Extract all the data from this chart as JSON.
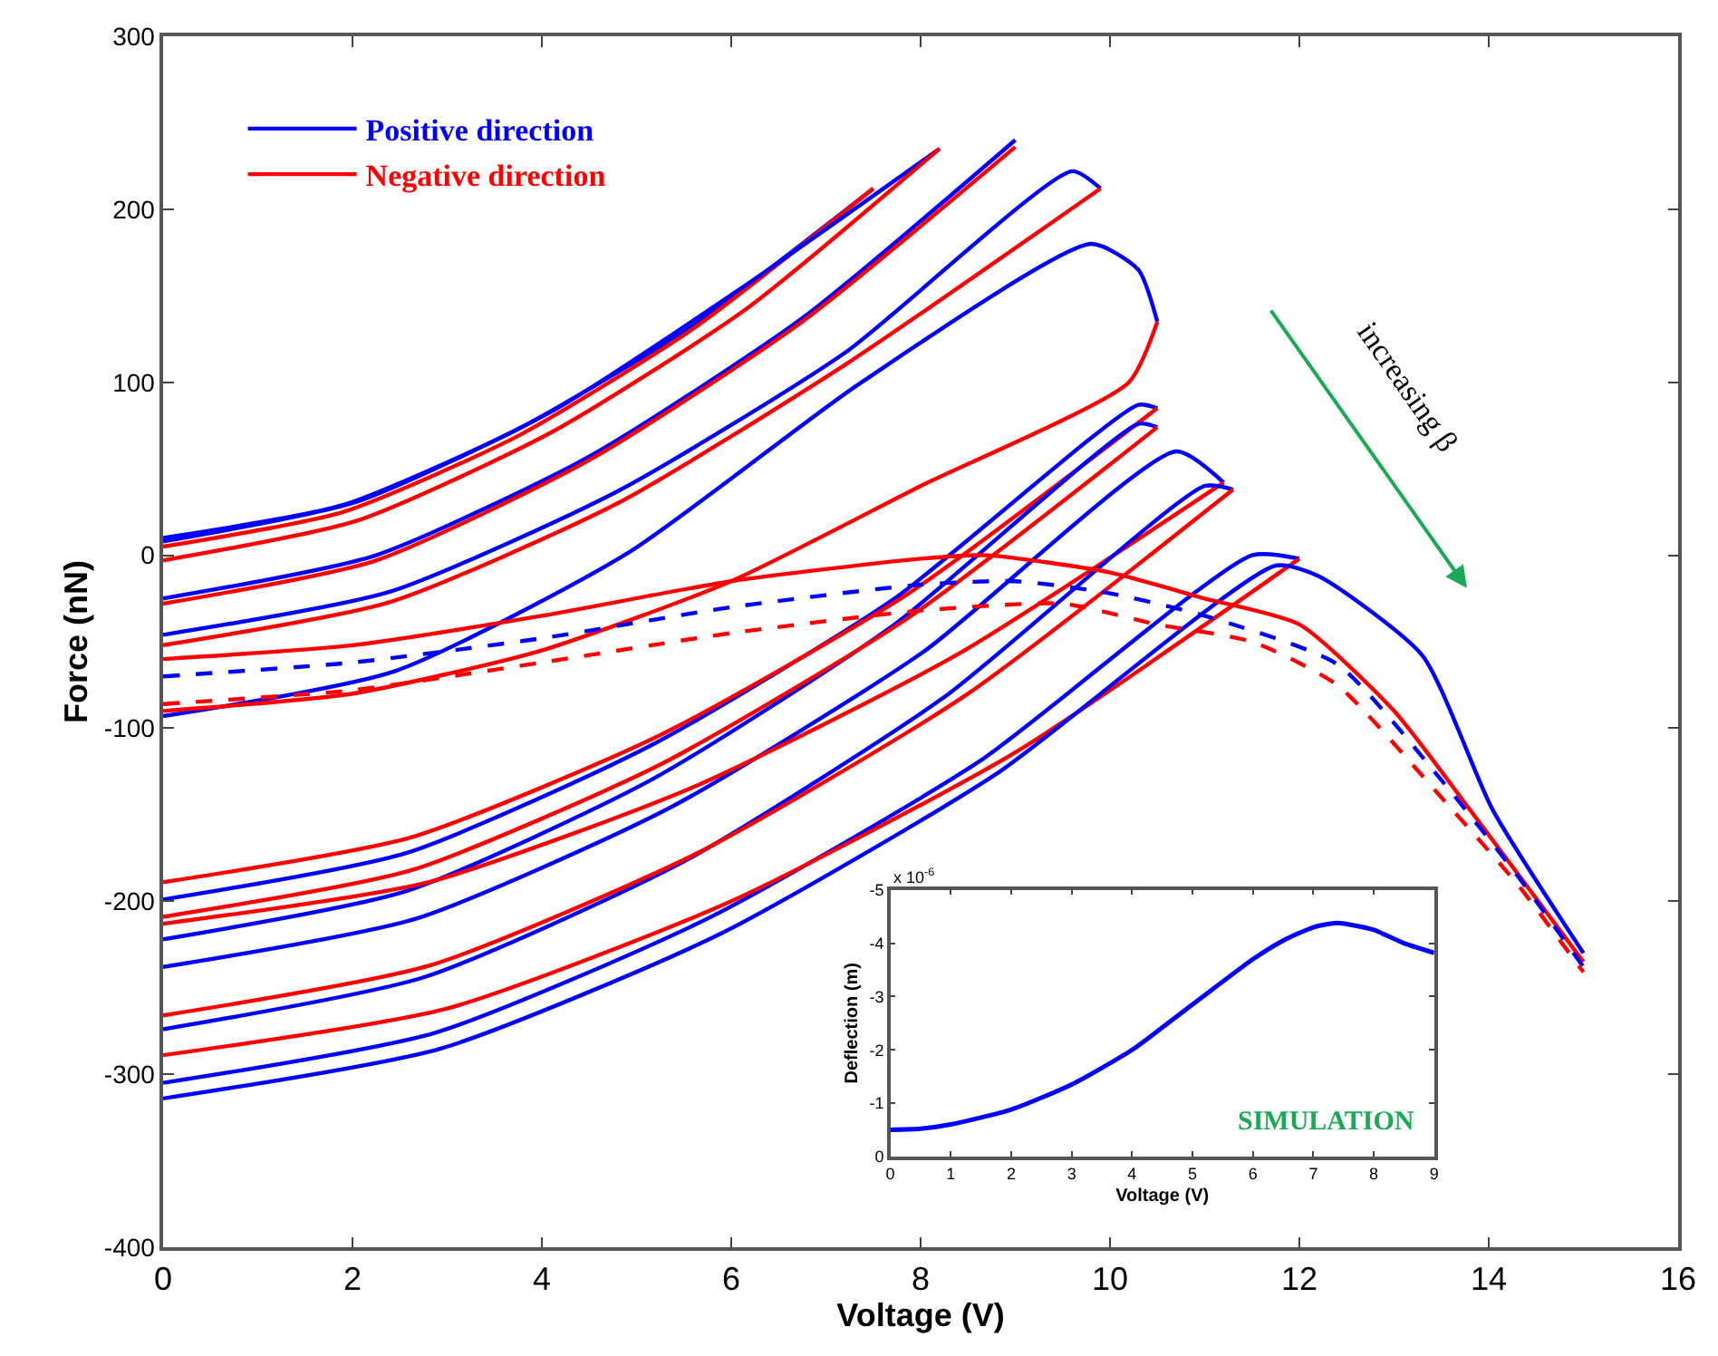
{
  "chart_data": [
    {
      "type": "line",
      "xlabel": "Voltage (V)",
      "ylabel": "Force (nN)",
      "xlim": [
        0,
        16
      ],
      "xticks": [
        0,
        2,
        4,
        6,
        8,
        10,
        12,
        14,
        16
      ],
      "ylim": [
        -400,
        300
      ],
      "yticks": [
        -400,
        -300,
        -200,
        -100,
        0,
        100,
        200,
        300
      ],
      "legend": "top left",
      "marker": "none",
      "line_style": "solid",
      "annotations": [
        "increasing β"
      ],
      "series": [
        {
          "name": "Positive direction",
          "color": "#0000ff",
          "x": [
            0,
            1.9,
            3.75,
            5.6,
            7.5
          ],
          "values": [
            10,
            29,
            73,
            133,
            212
          ]
        },
        {
          "name": "Negative direction",
          "color": "#ff0000",
          "x": [
            0,
            1.9,
            3.75,
            5.6,
            7.5
          ],
          "values": [
            5,
            25,
            69,
            131,
            212
          ]
        },
        {
          "color": "#0000ff",
          "x": [
            0,
            2.05,
            4.1,
            6.15,
            8.2
          ],
          "values": [
            8,
            31,
            83,
            156,
            235
          ]
        },
        {
          "color": "#ff0000",
          "x": [
            0,
            2.05,
            4.1,
            6.15,
            8.2
          ],
          "values": [
            -3,
            20,
            71,
            142,
            235
          ]
        },
        {
          "color": "#0000ff",
          "x": [
            0,
            2.25,
            4.5,
            6.75,
            9
          ],
          "values": [
            -25,
            0,
            57,
            137,
            240
          ]
        },
        {
          "color": "#ff0000",
          "x": [
            0,
            2.25,
            4.5,
            6.75,
            9
          ],
          "values": [
            -28,
            -3,
            55,
            135,
            236
          ]
        },
        {
          "color": "#0000ff",
          "x": [
            0,
            2.4,
            4.8,
            7.2,
            9.6,
            9.9
          ],
          "values": [
            -46,
            -21,
            37,
            117,
            222,
            212
          ]
        },
        {
          "color": "#ff0000",
          "x": [
            0,
            2.4,
            4.8,
            7.2,
            9.9
          ],
          "values": [
            -52,
            -27,
            30,
            110,
            212
          ]
        },
        {
          "color": "#0000ff",
          "x": [
            0,
            2.45,
            4.9,
            7.35,
            9.8,
            10.3,
            10.5
          ],
          "values": [
            -93,
            -67,
            1,
            99,
            180,
            165,
            135
          ]
        },
        {
          "color": "#ff0000",
          "x": [
            10.5,
            10.2,
            8,
            6,
            4,
            2,
            0
          ],
          "values": [
            135,
            100,
            40,
            -15,
            -55,
            -80,
            -90
          ]
        },
        {
          "color": "#0000ff",
          "x": [
            0,
            2.575,
            5.15,
            7.725,
            10.3,
            10.5
          ],
          "values": [
            -199,
            -172,
            -110,
            -25,
            87,
            85
          ]
        },
        {
          "color": "#ff0000",
          "x": [
            0,
            2.625,
            5.25,
            7.875,
            10.5
          ],
          "values": [
            -189,
            -163,
            -104,
            -22,
            85
          ]
        },
        {
          "color": "#0000ff",
          "x": [
            0,
            2.575,
            5.15,
            7.725,
            10.3,
            10.5
          ],
          "values": [
            -222,
            -194,
            -130,
            -40,
            76,
            74
          ]
        },
        {
          "color": "#ff0000",
          "x": [
            0,
            2.625,
            5.25,
            7.875,
            10.5
          ],
          "values": [
            -209,
            -182,
            -121,
            -36,
            74
          ]
        },
        {
          "color": "#0000ff",
          "x": [
            0,
            2.675,
            5.35,
            8.025,
            10.7,
            11.2
          ],
          "values": [
            -238,
            -210,
            -146,
            -56,
            60,
            42
          ]
        },
        {
          "color": "#ff0000",
          "x": [
            0,
            2.8,
            5.6,
            8.4,
            11.2
          ],
          "values": [
            -213,
            -189,
            -134,
            -57,
            42
          ]
        },
        {
          "color": "#0000ff",
          "x": [
            0,
            2.75,
            5.5,
            8.25,
            11,
            11.3
          ],
          "values": [
            -274,
            -244,
            -177,
            -82,
            40,
            38
          ]
        },
        {
          "color": "#ff0000",
          "x": [
            0,
            2.825,
            5.65,
            8.475,
            11.3
          ],
          "values": [
            -266,
            -237,
            -172,
            -81,
            38
          ]
        },
        {
          "color": "#0000ff",
          "x": [
            0,
            2.875,
            5.75,
            8.625,
            11.5,
            12
          ],
          "values": [
            -305,
            -276,
            -210,
            -119,
            0,
            -2
          ]
        },
        {
          "color": "#ff0000",
          "x": [
            0,
            3,
            6,
            9,
            12
          ],
          "values": [
            -289,
            -262,
            -200,
            -114,
            -2
          ]
        },
        {
          "color": "#0000ff",
          "x": [
            0,
            2.94,
            5.88,
            8.81,
            11.75,
            12.2,
            13.3,
            14.04,
            15
          ],
          "values": [
            -314,
            -285,
            -219,
            -126,
            -6,
            -12,
            -58,
            -147,
            -230
          ]
        },
        {
          "color": "#ff0000",
          "x": [
            0,
            2,
            4,
            6,
            8,
            8.7,
            10,
            11,
            12,
            13,
            13.8,
            15
          ],
          "values": [
            -60,
            -52,
            -35,
            -15,
            -2,
            0,
            -10,
            -25,
            -40,
            -90,
            -147,
            -235
          ]
        },
        {
          "color": "#0000ff",
          "line_style": "dashed",
          "x": [
            0,
            2,
            4,
            6,
            8,
            9,
            10,
            11,
            12.4,
            13.5,
            14.3,
            15
          ],
          "values": [
            -70,
            -62,
            -48,
            -30,
            -17,
            -15,
            -22,
            -35,
            -63,
            -130,
            -185,
            -238
          ]
        },
        {
          "color": "#ff0000",
          "line_style": "dashed",
          "x": [
            0,
            2,
            4,
            6,
            8,
            9.5,
            10.5,
            11.5,
            12.4,
            13.5,
            14.3,
            15
          ],
          "values": [
            -86,
            -78,
            -62,
            -45,
            -32,
            -28,
            -40,
            -50,
            -75,
            -140,
            -190,
            -241
          ]
        }
      ]
    },
    {
      "type": "line",
      "xlabel": "Voltage (V)",
      "ylabel": "Deflection (m)",
      "xlim": [
        0,
        9
      ],
      "xticks": [
        0,
        1,
        2,
        3,
        4,
        5,
        6,
        7,
        8,
        9
      ],
      "ylim": [
        0,
        -5
      ],
      "yticks": [
        0,
        -1,
        -2,
        -3,
        -4,
        -5
      ],
      "marker": "none",
      "annotations": [
        "x 10$^{-6}$",
        "SIMULATION"
      ],
      "series": [
        {
          "color": "#0000ff",
          "x": [
            0,
            0.5,
            1,
            2,
            3,
            4,
            5,
            6,
            6.5,
            7,
            7.4,
            8,
            8.5,
            9
          ],
          "values": [
            -0.5,
            -0.52,
            -0.6,
            -0.88,
            -1.35,
            -2.0,
            -2.85,
            -3.7,
            -4.05,
            -4.3,
            -4.38,
            -4.25,
            -4.0,
            -3.82
          ]
        }
      ]
    }
  ]
}
